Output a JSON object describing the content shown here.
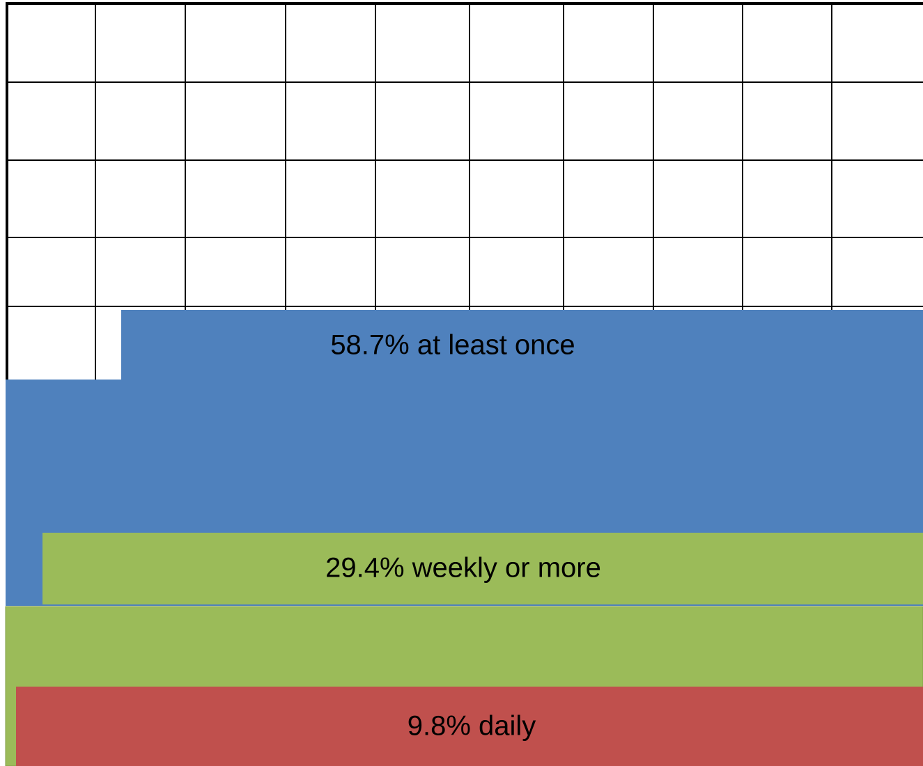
{
  "blocks": [
    {
      "label": "58.7% at least once"
    },
    {
      "label": "29.4% weekly or more"
    },
    {
      "label": "9.8% daily"
    }
  ]
}
